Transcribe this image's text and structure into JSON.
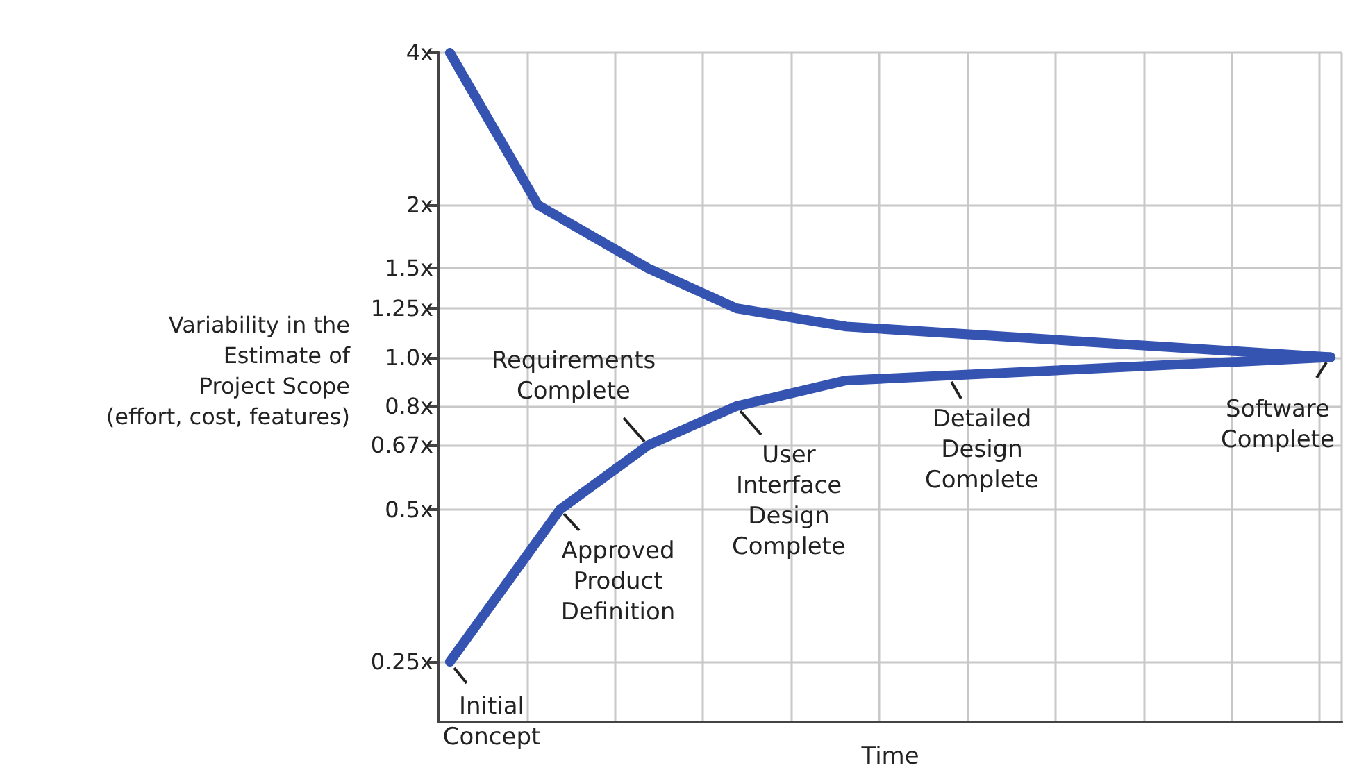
{
  "chart_data": {
    "type": "line",
    "xlabel": "Time",
    "ylabel": "Variability in the\nEstimate of\nProject Scope\n(effort, cost, features)",
    "categories": [
      null,
      null,
      null,
      null,
      null,
      null,
      null,
      null,
      null,
      null,
      null,
      null,
      null,
      null,
      null,
      null,
      null,
      null,
      null,
      null,
      null,
      null,
      null,
      null,
      null,
      null,
      null,
      null,
      null,
      null,
      null,
      null,
      null,
      null,
      null,
      null,
      null,
      null,
      null,
      null,
      null
    ],
    "series": [
      {
        "color": "#3553b0",
        "values": [
          4,
          null,
          null,
          null,
          2,
          null,
          null,
          null,
          null,
          1.5,
          null,
          null,
          null,
          1.25,
          null,
          null,
          null,
          null,
          1.15,
          null,
          null,
          null,
          null,
          null,
          null,
          null,
          null,
          null,
          null,
          null,
          null,
          null,
          null,
          null,
          null,
          null,
          null,
          null,
          null,
          null,
          1.0
        ]
      },
      {
        "color": "#3553b0",
        "values": [
          0.25,
          null,
          null,
          null,
          null,
          0.5,
          null,
          null,
          null,
          0.67,
          null,
          null,
          null,
          0.8,
          null,
          null,
          null,
          null,
          0.9,
          null,
          null,
          null,
          null,
          null,
          null,
          null,
          null,
          null,
          null,
          null,
          null,
          null,
          null,
          null,
          null,
          null,
          null,
          null,
          null,
          null,
          1.0
        ]
      }
    ],
    "ylim": [
      0.19,
      4
    ],
    "yticks": [
      {
        "value": 0.25,
        "label": "0.25x"
      },
      {
        "value": 0.5,
        "label": "0.5x"
      },
      {
        "value": 0.67,
        "label": "0.67x"
      },
      {
        "value": 0.8,
        "label": "0.8x"
      },
      {
        "value": 1.0,
        "label": "1.0x"
      },
      {
        "value": 1.25,
        "label": "1.25x"
      },
      {
        "value": 1.5,
        "label": "1.5x"
      },
      {
        "value": 2,
        "label": "2x"
      },
      {
        "value": 4,
        "label": "4x"
      }
    ],
    "log": "y",
    "grid": true,
    "tick_labels": "y",
    "marker": "none",
    "line_style": "solid",
    "annotations": [
      "Initial\nConcept",
      "Approved\nProduct\nDefinition",
      "Requirements\nComplete",
      "User\nInterface\nDesign\nComplete",
      "Detailed\nDesign\nComplete",
      "Software\nComplete"
    ]
  }
}
